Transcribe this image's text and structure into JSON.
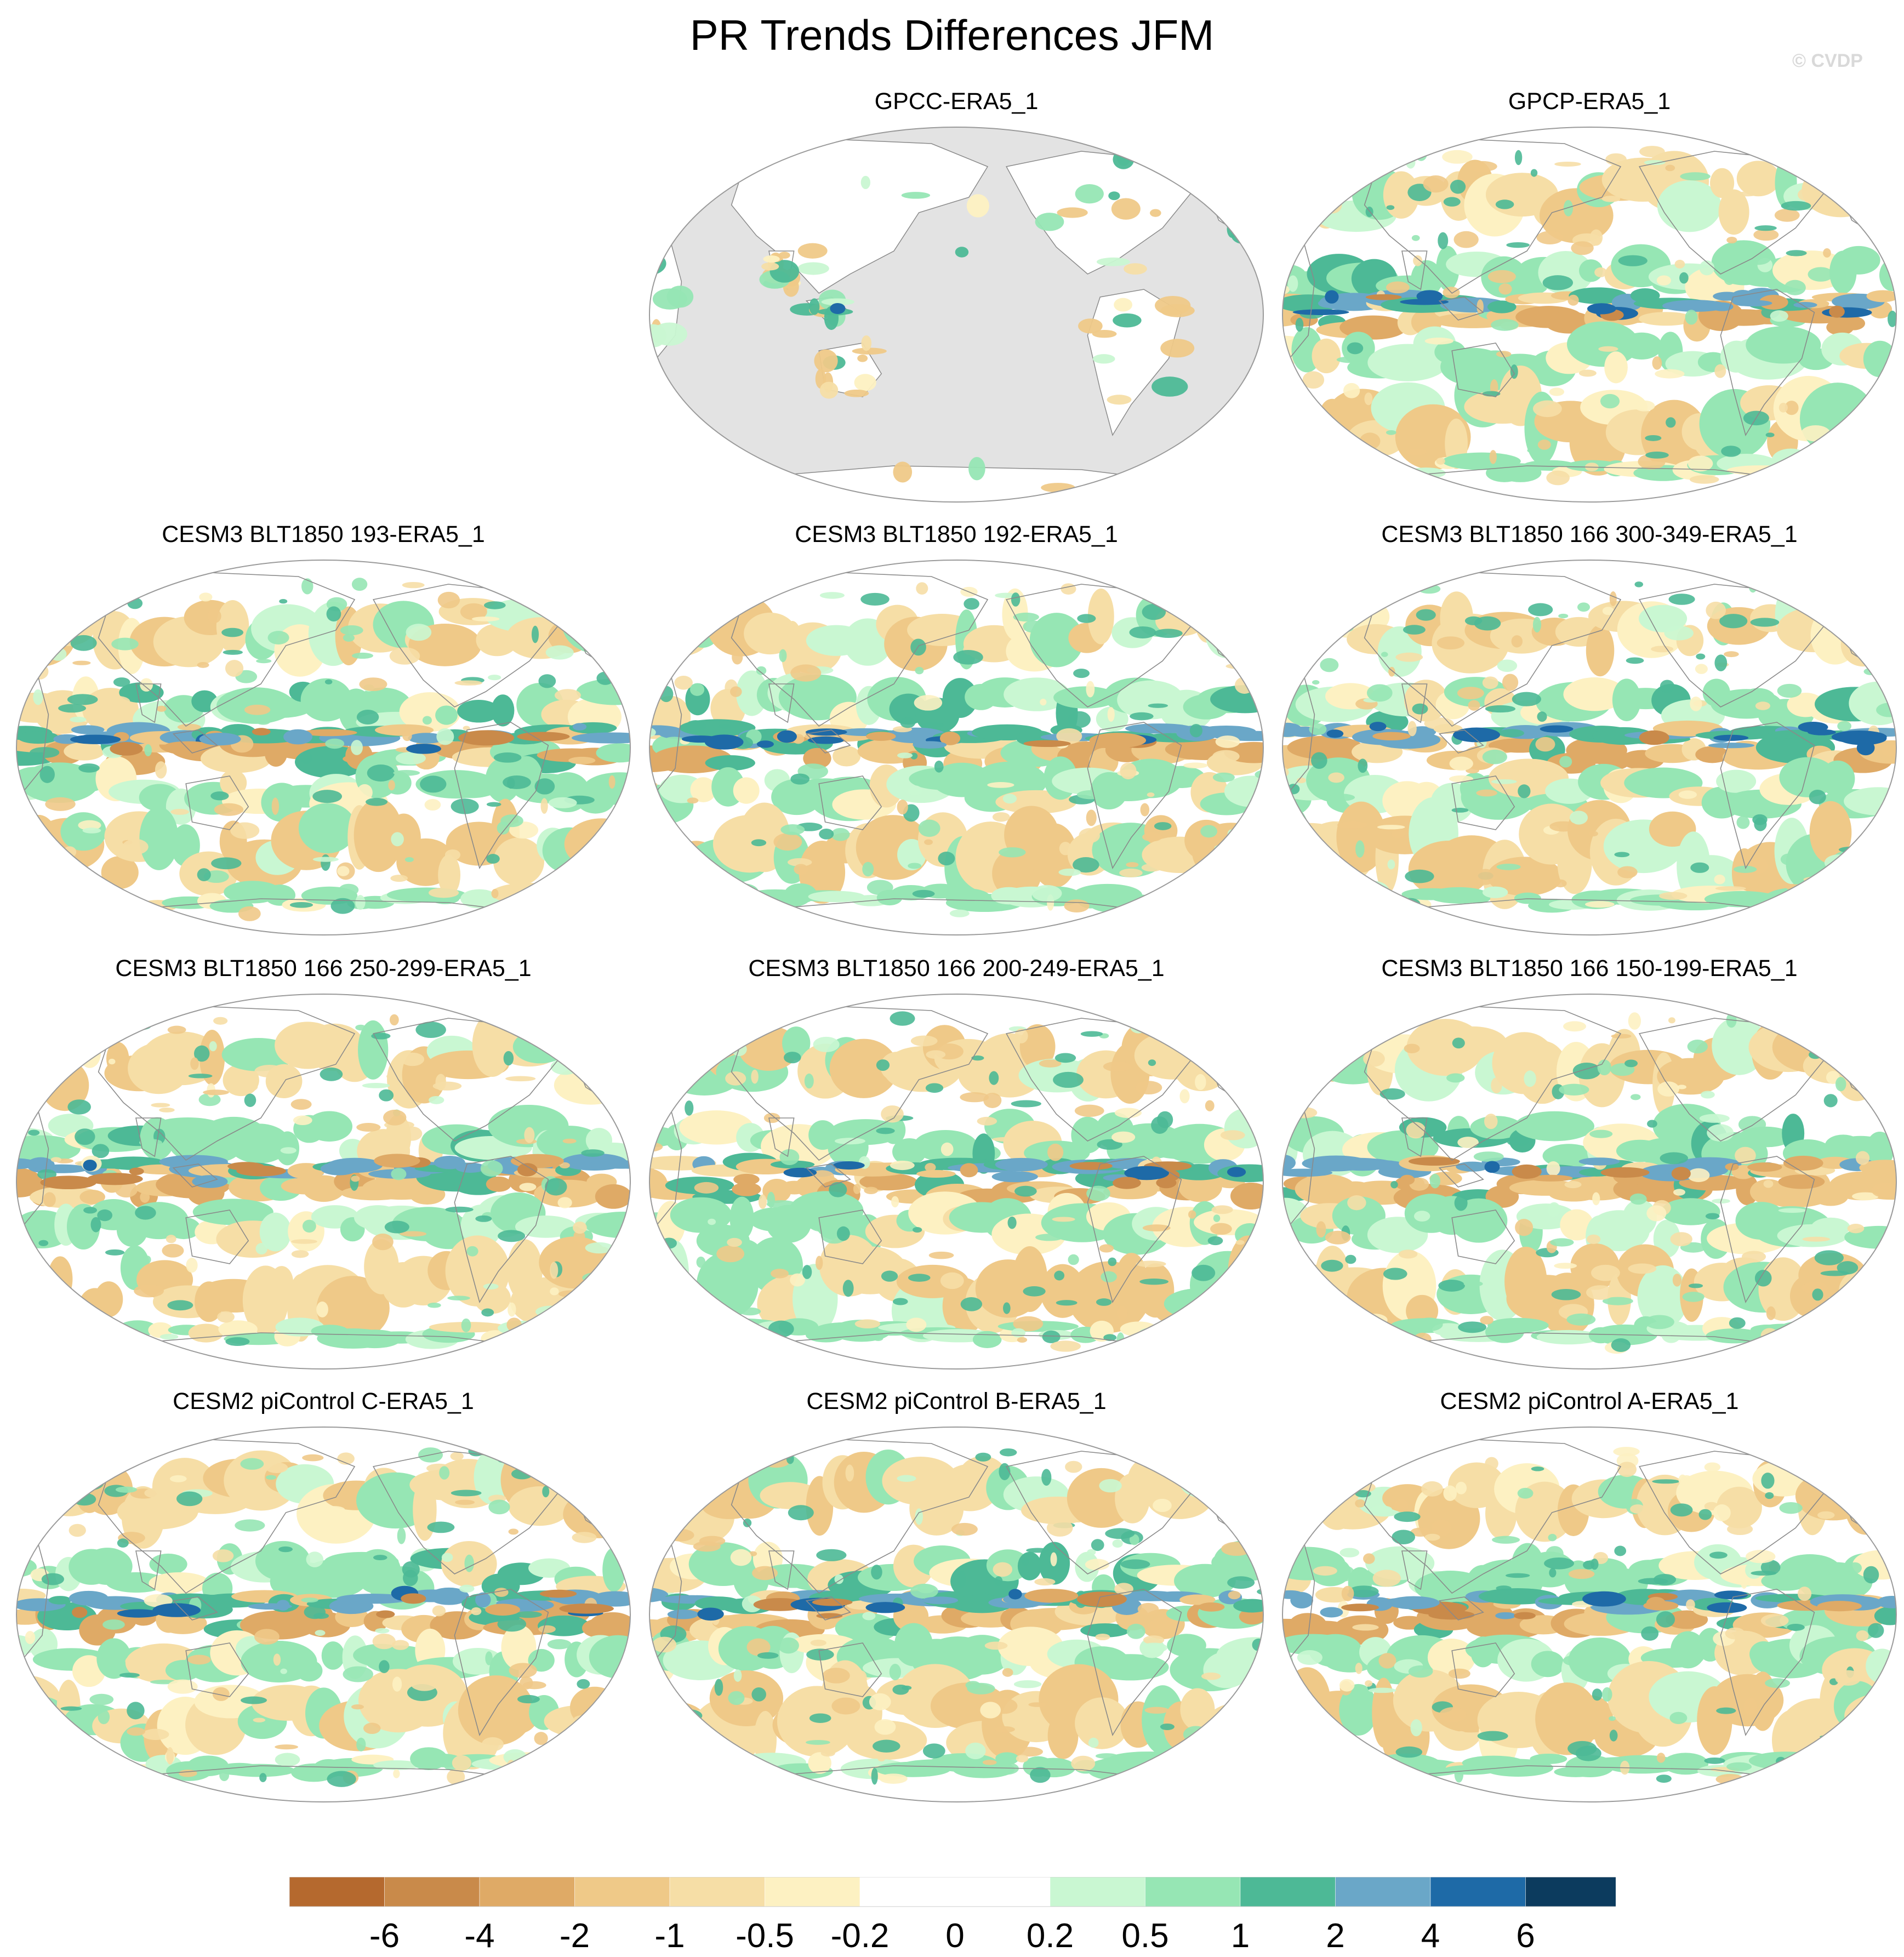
{
  "title": "PR Trends Differences JFM",
  "watermark": "© CVDP",
  "panels": [
    {
      "title": "GPCC-ERA5_1",
      "coverage": "land-only",
      "slot": 1,
      "seed": 3
    },
    {
      "title": "GPCP-ERA5_1",
      "coverage": "global",
      "slot": 2,
      "seed": 7
    },
    {
      "title": "CESM3 BLT1850 193-ERA5_1",
      "coverage": "global",
      "slot": 3,
      "seed": 11
    },
    {
      "title": "CESM3 BLT1850 192-ERA5_1",
      "coverage": "global",
      "slot": 4,
      "seed": 13
    },
    {
      "title": "CESM3 BLT1850 166 300-349-ERA5_1",
      "coverage": "global",
      "slot": 5,
      "seed": 17
    },
    {
      "title": "CESM3 BLT1850 166 250-299-ERA5_1",
      "coverage": "global",
      "slot": 6,
      "seed": 19
    },
    {
      "title": "CESM3 BLT1850 166 200-249-ERA5_1",
      "coverage": "global",
      "slot": 7,
      "seed": 23
    },
    {
      "title": "CESM3 BLT1850 166 150-199-ERA5_1",
      "coverage": "global",
      "slot": 8,
      "seed": 29
    },
    {
      "title": "CESM2 piControl C-ERA5_1",
      "coverage": "global",
      "slot": 9,
      "seed": 31
    },
    {
      "title": "CESM2 piControl B-ERA5_1",
      "coverage": "global",
      "slot": 10,
      "seed": 37
    },
    {
      "title": "CESM2 piControl A-ERA5_1",
      "coverage": "global",
      "slot": 11,
      "seed": 41
    }
  ],
  "colorbar": {
    "levels": [
      "-6",
      "-4",
      "-2",
      "-1",
      "-0.5",
      "-0.2",
      "0",
      "0.2",
      "0.5",
      "1",
      "2",
      "4",
      "6"
    ],
    "colors": [
      "#b5692e",
      "#c98a4a",
      "#dfaa66",
      "#efc988",
      "#f6dea6",
      "#fdf1c2",
      "#ffffff",
      "#ffffff",
      "#c9f7d2",
      "#96e6b4",
      "#4db996",
      "#6aa7c8",
      "#1e6aa7",
      "#0c3b5e"
    ]
  },
  "colors": {
    "missing": "#e3e3e3",
    "coast": "#8a8a8a",
    "border": "#9a9a9a"
  }
}
